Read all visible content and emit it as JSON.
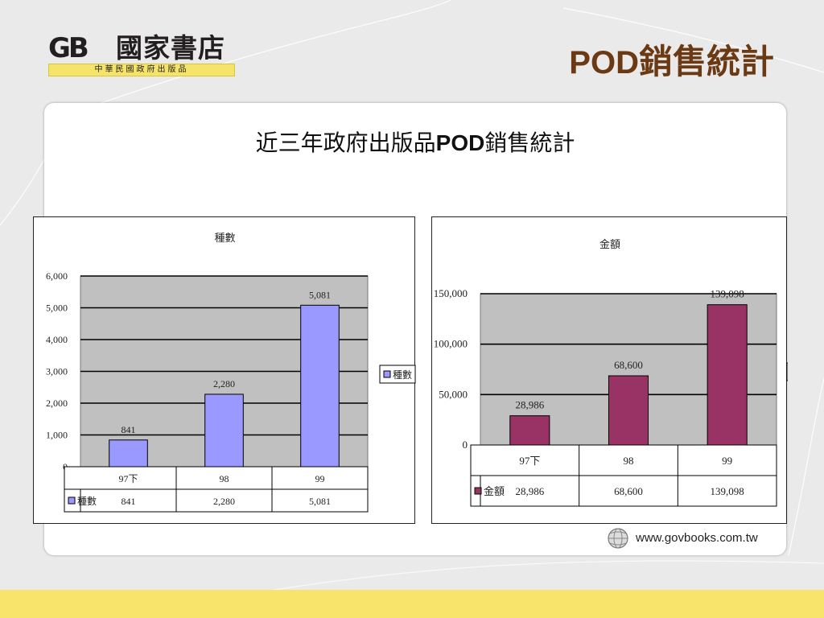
{
  "logo": {
    "mark": "GB",
    "name": "國家書店",
    "subtitle": "中華民國政府出版品"
  },
  "header": {
    "title_latin": "POD",
    "title_cjk": "銷售統計"
  },
  "panel": {
    "heading_cjk1": "近三年政府出版品",
    "heading_latin": "POD",
    "heading_cjk2": "銷售統計"
  },
  "footer": {
    "url": "www.govbooks.com.tw",
    "icon": "globe-icon"
  },
  "colors": {
    "band": "#f8e46a",
    "title": "#6b3a14",
    "plot_bg": "#c0c0c0",
    "series1": "#9999ff",
    "series2": "#993366"
  },
  "chart_data": [
    {
      "type": "bar",
      "title": "種數",
      "categories": [
        "97下",
        "98",
        "99"
      ],
      "series": [
        {
          "name": "種數",
          "values": [
            841,
            2280,
            5081
          ]
        }
      ],
      "value_labels": [
        "841",
        "2,280",
        "5,081"
      ],
      "yticks": [
        "0",
        "1,000",
        "2,000",
        "3,000",
        "4,000",
        "5,000",
        "6,000"
      ],
      "ylim": [
        0,
        6000
      ],
      "legend": "right",
      "grid": true,
      "data_table": true,
      "bar_color": "#9999ff"
    },
    {
      "type": "bar",
      "title": "金額",
      "categories": [
        "97下",
        "98",
        "99"
      ],
      "series": [
        {
          "name": "金額",
          "values": [
            28986,
            68600,
            139098
          ]
        }
      ],
      "value_labels": [
        "28,986",
        "68,600",
        "139,098"
      ],
      "yticks": [
        "0",
        "50,000",
        "100,000",
        "150,000"
      ],
      "ylim": [
        0,
        150000
      ],
      "legend": "right",
      "grid": true,
      "data_table": true,
      "bar_color": "#993366"
    }
  ]
}
